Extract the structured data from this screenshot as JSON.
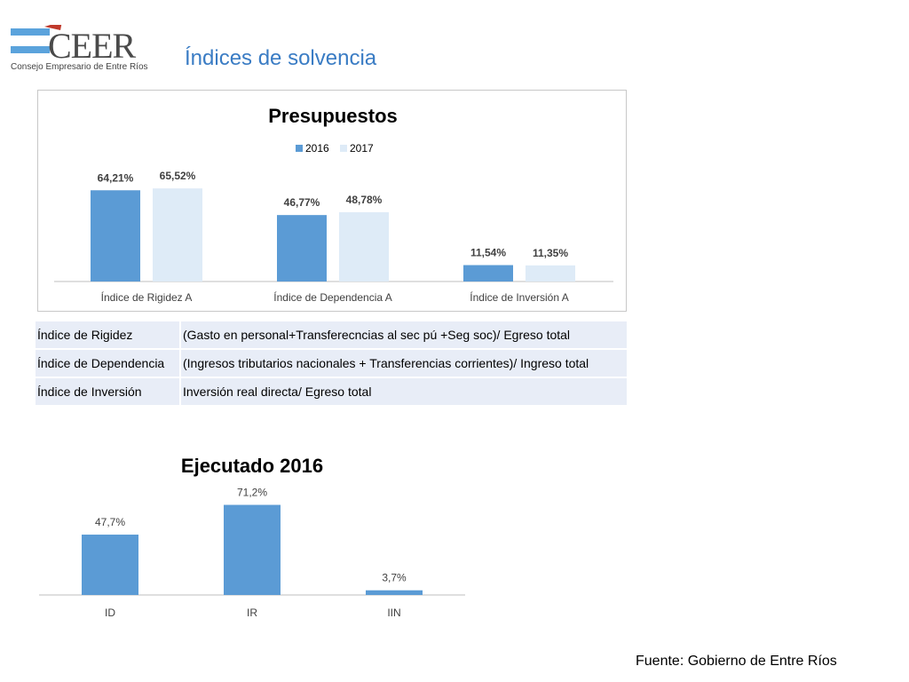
{
  "logo": {
    "text": "CEER",
    "subtitle": "Consejo Empresario de Entre Ríos"
  },
  "page_title": "Índices de solvencia",
  "colors": {
    "series_2016": "#5b9bd5",
    "series_2017": "#deebf7",
    "title": "#3a7cc4",
    "table_bg": "#e8edf7"
  },
  "chart_data": [
    {
      "type": "bar",
      "title": "Presupuestos",
      "categories": [
        "Índice de Rigidez A",
        "Índice de Dependencia A",
        "Índice de Inversión A"
      ],
      "series": [
        {
          "name": "2016",
          "values": [
            64.21,
            46.77,
            11.54
          ],
          "labels": [
            "64,21%",
            "46,77%",
            "11,54%"
          ]
        },
        {
          "name": "2017",
          "values": [
            65.52,
            48.78,
            11.35
          ],
          "labels": [
            "65,52%",
            "48,78%",
            "11,35%"
          ]
        }
      ],
      "ylim": [
        0,
        70
      ],
      "legend": "top-center",
      "grid": false
    },
    {
      "type": "bar",
      "title": "Ejecutado 2016",
      "categories": [
        "ID",
        "IR",
        "IIN"
      ],
      "values": [
        47.7,
        71.2,
        3.7
      ],
      "labels": [
        "47,7%",
        "71,2%",
        "3,7%"
      ],
      "ylim": [
        0,
        80
      ],
      "grid": false
    }
  ],
  "definitions": [
    {
      "term": "Índice de Rigidez",
      "formula": "(Gasto en personal+Transferecncias al sec pú +Seg soc)/ Egreso total"
    },
    {
      "term": "Índice de Dependencia",
      "formula": "(Ingresos tributarios nacionales + Transferencias corrientes)/ Ingreso total"
    },
    {
      "term": "Índice de Inversión",
      "formula": "Inversión real directa/ Egreso total"
    }
  ],
  "source": "Fuente: Gobierno de Entre Ríos"
}
